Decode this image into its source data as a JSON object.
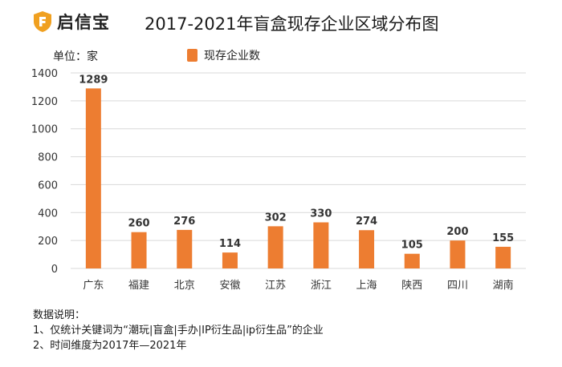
{
  "header": {
    "logo_text": "启信宝",
    "title": "2017-2021年盲盒现存企业区域分布图"
  },
  "unit_label": "单位：家",
  "colors": {
    "bar": "#ED7D31",
    "grid": "#d9d9d9",
    "axis_text": "#333333"
  },
  "chart_data": {
    "type": "bar",
    "title": "2017-2021年盲盒现存企业区域分布图",
    "categories": [
      "广东",
      "福建",
      "北京",
      "安徽",
      "江苏",
      "浙江",
      "上海",
      "陕西",
      "四川",
      "湖南"
    ],
    "series": [
      {
        "name": "现存企业数",
        "values": [
          1289,
          260,
          276,
          114,
          302,
          330,
          274,
          105,
          200,
          155
        ]
      }
    ],
    "yticks": [
      0,
      200,
      400,
      600,
      800,
      1000,
      1200,
      1400
    ],
    "ylim": [
      0,
      1400
    ],
    "ylabel": "单位：家",
    "xlabel": "",
    "legend": "top-center",
    "grid": true
  },
  "notes": {
    "heading": "数据说明：",
    "line1": "1、仅统计关键词为“潮玩|盲盒|手办|IP衍生品|ip衍生品”的企业",
    "line2": "2、时间维度为2017年—2021年"
  }
}
